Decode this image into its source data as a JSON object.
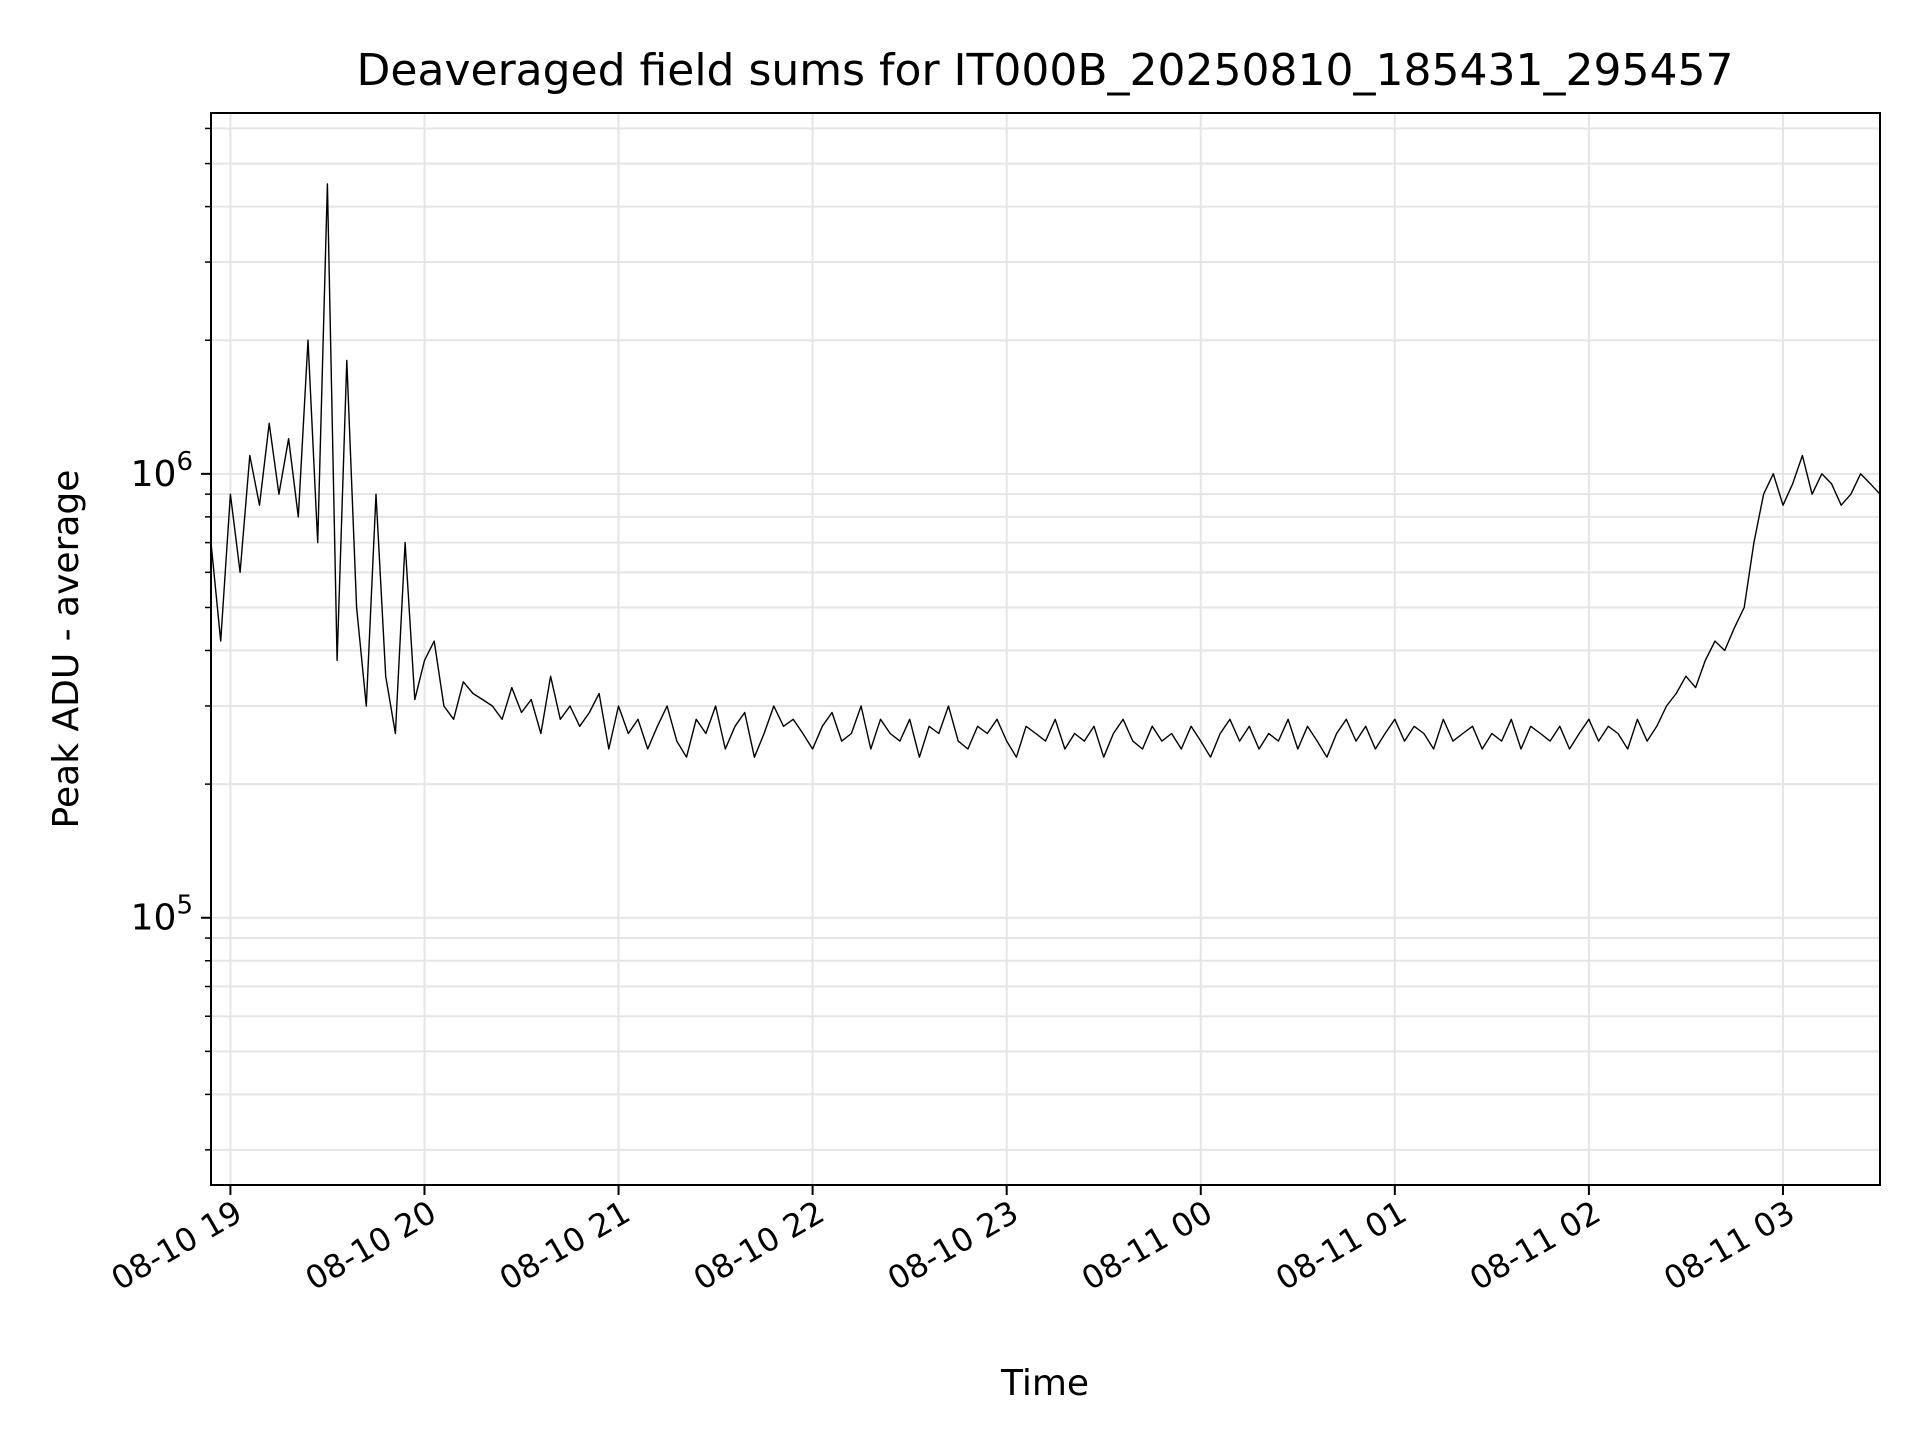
{
  "chart_data": {
    "type": "line",
    "title": "Deaveraged field sums for IT000B_20250810_185431_295457",
    "xlabel": "Time",
    "ylabel": "Peak ADU - average",
    "yscale": "log",
    "ylim": [
      25000,
      6500000
    ],
    "xlim": [
      "2025-08-10 18:54",
      "2025-08-11 03:30"
    ],
    "grid": true,
    "line_color": "#000000",
    "grid_color": "#e5e5e5",
    "x_ticks": [
      {
        "value": "2025-08-10 19:00",
        "label": "08-10 19"
      },
      {
        "value": "2025-08-10 20:00",
        "label": "08-10 20"
      },
      {
        "value": "2025-08-10 21:00",
        "label": "08-10 21"
      },
      {
        "value": "2025-08-10 22:00",
        "label": "08-10 22"
      },
      {
        "value": "2025-08-10 23:00",
        "label": "08-10 23"
      },
      {
        "value": "2025-08-11 00:00",
        "label": "08-11 00"
      },
      {
        "value": "2025-08-11 01:00",
        "label": "08-11 01"
      },
      {
        "value": "2025-08-11 02:00",
        "label": "08-11 02"
      },
      {
        "value": "2025-08-11 03:00",
        "label": "08-11 03"
      }
    ],
    "y_ticks": [
      {
        "value": 100000,
        "base": "10",
        "exp": "5"
      },
      {
        "value": 1000000,
        "base": "10",
        "exp": "6"
      }
    ],
    "series": [
      {
        "x": [
          "2025-08-10 18:54",
          "2025-08-10 18:57",
          "2025-08-10 19:00",
          "2025-08-10 19:03",
          "2025-08-10 19:06",
          "2025-08-10 19:09",
          "2025-08-10 19:12",
          "2025-08-10 19:15",
          "2025-08-10 19:18",
          "2025-08-10 19:21",
          "2025-08-10 19:24",
          "2025-08-10 19:27",
          "2025-08-10 19:30",
          "2025-08-10 19:33",
          "2025-08-10 19:36",
          "2025-08-10 19:39",
          "2025-08-10 19:42",
          "2025-08-10 19:45",
          "2025-08-10 19:48",
          "2025-08-10 19:51",
          "2025-08-10 19:54",
          "2025-08-10 19:57",
          "2025-08-10 20:00",
          "2025-08-10 20:03",
          "2025-08-10 20:06",
          "2025-08-10 20:09",
          "2025-08-10 20:12",
          "2025-08-10 20:15",
          "2025-08-10 20:18",
          "2025-08-10 20:21",
          "2025-08-10 20:24",
          "2025-08-10 20:27",
          "2025-08-10 20:30",
          "2025-08-10 20:33",
          "2025-08-10 20:36",
          "2025-08-10 20:39",
          "2025-08-10 20:42",
          "2025-08-10 20:45",
          "2025-08-10 20:48",
          "2025-08-10 20:51",
          "2025-08-10 20:54",
          "2025-08-10 20:57",
          "2025-08-10 21:00",
          "2025-08-10 21:03",
          "2025-08-10 21:06",
          "2025-08-10 21:09",
          "2025-08-10 21:12",
          "2025-08-10 21:15",
          "2025-08-10 21:18",
          "2025-08-10 21:21",
          "2025-08-10 21:24",
          "2025-08-10 21:27",
          "2025-08-10 21:30",
          "2025-08-10 21:33",
          "2025-08-10 21:36",
          "2025-08-10 21:39",
          "2025-08-10 21:42",
          "2025-08-10 21:45",
          "2025-08-10 21:48",
          "2025-08-10 21:51",
          "2025-08-10 21:54",
          "2025-08-10 21:57",
          "2025-08-10 22:00",
          "2025-08-10 22:03",
          "2025-08-10 22:06",
          "2025-08-10 22:09",
          "2025-08-10 22:12",
          "2025-08-10 22:15",
          "2025-08-10 22:18",
          "2025-08-10 22:21",
          "2025-08-10 22:24",
          "2025-08-10 22:27",
          "2025-08-10 22:30",
          "2025-08-10 22:33",
          "2025-08-10 22:36",
          "2025-08-10 22:39",
          "2025-08-10 22:42",
          "2025-08-10 22:45",
          "2025-08-10 22:48",
          "2025-08-10 22:51",
          "2025-08-10 22:54",
          "2025-08-10 22:57",
          "2025-08-10 23:00",
          "2025-08-10 23:03",
          "2025-08-10 23:06",
          "2025-08-10 23:09",
          "2025-08-10 23:12",
          "2025-08-10 23:15",
          "2025-08-10 23:18",
          "2025-08-10 23:21",
          "2025-08-10 23:24",
          "2025-08-10 23:27",
          "2025-08-10 23:30",
          "2025-08-10 23:33",
          "2025-08-10 23:36",
          "2025-08-10 23:39",
          "2025-08-10 23:42",
          "2025-08-10 23:45",
          "2025-08-10 23:48",
          "2025-08-10 23:51",
          "2025-08-10 23:54",
          "2025-08-10 23:57",
          "2025-08-11 00:00",
          "2025-08-11 00:03",
          "2025-08-11 00:06",
          "2025-08-11 00:09",
          "2025-08-11 00:12",
          "2025-08-11 00:15",
          "2025-08-11 00:18",
          "2025-08-11 00:21",
          "2025-08-11 00:24",
          "2025-08-11 00:27",
          "2025-08-11 00:30",
          "2025-08-11 00:33",
          "2025-08-11 00:36",
          "2025-08-11 00:39",
          "2025-08-11 00:42",
          "2025-08-11 00:45",
          "2025-08-11 00:48",
          "2025-08-11 00:51",
          "2025-08-11 00:54",
          "2025-08-11 00:57",
          "2025-08-11 01:00",
          "2025-08-11 01:03",
          "2025-08-11 01:06",
          "2025-08-11 01:09",
          "2025-08-11 01:12",
          "2025-08-11 01:15",
          "2025-08-11 01:18",
          "2025-08-11 01:21",
          "2025-08-11 01:24",
          "2025-08-11 01:27",
          "2025-08-11 01:30",
          "2025-08-11 01:33",
          "2025-08-11 01:36",
          "2025-08-11 01:39",
          "2025-08-11 01:42",
          "2025-08-11 01:45",
          "2025-08-11 01:48",
          "2025-08-11 01:51",
          "2025-08-11 01:54",
          "2025-08-11 01:57",
          "2025-08-11 02:00",
          "2025-08-11 02:03",
          "2025-08-11 02:06",
          "2025-08-11 02:09",
          "2025-08-11 02:12",
          "2025-08-11 02:15",
          "2025-08-11 02:18",
          "2025-08-11 02:21",
          "2025-08-11 02:24",
          "2025-08-11 02:27",
          "2025-08-11 02:30",
          "2025-08-11 02:33",
          "2025-08-11 02:36",
          "2025-08-11 02:39",
          "2025-08-11 02:42",
          "2025-08-11 02:45",
          "2025-08-11 02:48",
          "2025-08-11 02:51",
          "2025-08-11 02:54",
          "2025-08-11 02:57",
          "2025-08-11 03:00",
          "2025-08-11 03:03",
          "2025-08-11 03:06",
          "2025-08-11 03:09",
          "2025-08-11 03:12",
          "2025-08-11 03:15",
          "2025-08-11 03:18",
          "2025-08-11 03:21",
          "2025-08-11 03:24",
          "2025-08-11 03:27",
          "2025-08-11 03:30"
        ],
        "y": [
          700000,
          420000,
          900000,
          600000,
          1100000,
          850000,
          1300000,
          900000,
          1200000,
          800000,
          2000000,
          700000,
          4500000,
          380000,
          1800000,
          500000,
          300000,
          900000,
          350000,
          260000,
          700000,
          310000,
          380000,
          420000,
          300000,
          280000,
          340000,
          320000,
          310000,
          300000,
          280000,
          330000,
          290000,
          310000,
          260000,
          350000,
          280000,
          300000,
          270000,
          290000,
          320000,
          240000,
          300000,
          260000,
          280000,
          240000,
          270000,
          300000,
          250000,
          230000,
          280000,
          260000,
          300000,
          240000,
          270000,
          290000,
          230000,
          260000,
          300000,
          270000,
          280000,
          260000,
          240000,
          270000,
          290000,
          250000,
          260000,
          300000,
          240000,
          280000,
          260000,
          250000,
          280000,
          230000,
          270000,
          260000,
          300000,
          250000,
          240000,
          270000,
          260000,
          280000,
          250000,
          230000,
          270000,
          260000,
          250000,
          280000,
          240000,
          260000,
          250000,
          270000,
          230000,
          260000,
          280000,
          250000,
          240000,
          270000,
          250000,
          260000,
          240000,
          270000,
          250000,
          230000,
          260000,
          280000,
          250000,
          270000,
          240000,
          260000,
          250000,
          280000,
          240000,
          270000,
          250000,
          230000,
          260000,
          280000,
          250000,
          270000,
          240000,
          260000,
          280000,
          250000,
          270000,
          260000,
          240000,
          280000,
          250000,
          260000,
          270000,
          240000,
          260000,
          250000,
          280000,
          240000,
          270000,
          260000,
          250000,
          270000,
          240000,
          260000,
          280000,
          250000,
          270000,
          260000,
          240000,
          280000,
          250000,
          270000,
          300000,
          320000,
          350000,
          330000,
          380000,
          420000,
          400000,
          450000,
          500000,
          700000,
          900000,
          1000000,
          850000,
          950000,
          1100000,
          900000,
          1000000,
          950000,
          850000,
          900000,
          1000000,
          950000,
          900000
        ]
      }
    ]
  }
}
